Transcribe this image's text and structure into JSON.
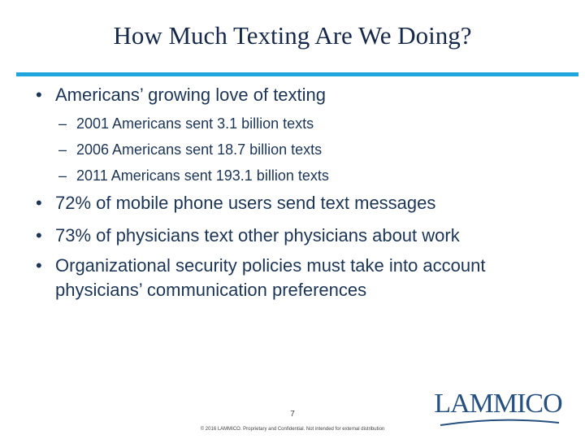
{
  "title": "How Much Texting Are We Doing?",
  "bullets": [
    {
      "text": "Americans’ growing love of texting",
      "sub": [
        "2001 Americans sent 3.1 billion texts",
        "2006 Americans sent 18.7 billion texts",
        "2011 Americans sent 193.1 billion texts"
      ]
    },
    {
      "text": "72% of mobile phone users send text messages"
    },
    {
      "text": "73% of physicians text other physicians about work"
    },
    {
      "text": "Organizational security policies must take into account physicians’ communication preferences"
    }
  ],
  "page_number": "7",
  "footer": "© 2016 LAMMICO. Proprietary and Confidential. Not intended for external distribution",
  "logo": "LAMMICO"
}
